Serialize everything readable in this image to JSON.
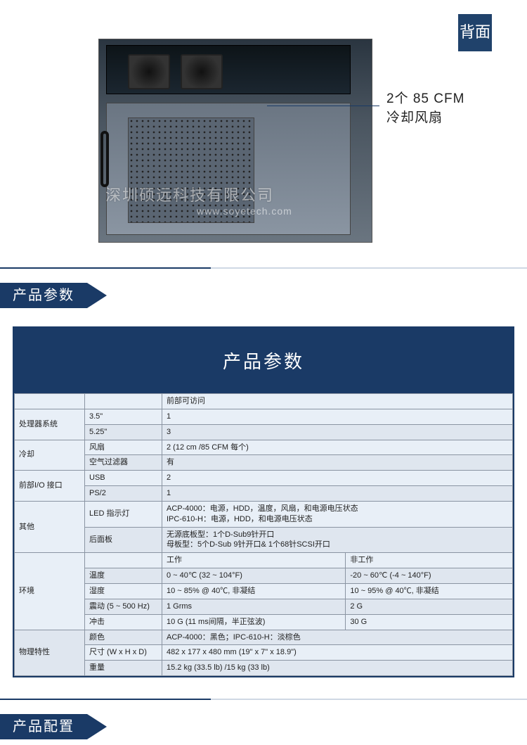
{
  "hero": {
    "side_tab": "背面",
    "callout_line1": "2个 85 CFM",
    "callout_line2": "冷却风扇",
    "watermark_main": "深圳硕远科技有限公司",
    "watermark_sub": "www.soyetech.com"
  },
  "section1_title": "产品参数",
  "section2_title": "产品配置",
  "params_card_title": "产品参数",
  "colors": {
    "accent": "#1a3a66",
    "card_bg": "#e8eff7",
    "border": "#8a94a2",
    "shade": "#dfe6ef"
  },
  "spec": {
    "top_header_col3": "前部可访问",
    "rows": [
      {
        "cat": "处理器系统",
        "catrows": 2,
        "sub": "3.5\"",
        "val": "1"
      },
      {
        "sub": "5.25\"",
        "val": "3",
        "shade": true
      },
      {
        "cat": "冷却",
        "catrows": 2,
        "sub": "风扇",
        "val": "2 (12 cm /85 CFM 每个)"
      },
      {
        "sub": "空气过滤器",
        "val": "有",
        "shade": true
      },
      {
        "cat": "前部I/O 接口",
        "catrows": 2,
        "sub": "USB",
        "val": "2"
      },
      {
        "sub": "PS/2",
        "val": "1",
        "shade": true
      },
      {
        "cat": "其他",
        "catrows": 2,
        "sub": "LED 指示灯",
        "val": "ACP-4000：电源，HDD，温度，风扇，和电源电压状态<br>IPC-610-H：电源，HDD，和电源电压状态"
      },
      {
        "sub": "后面板",
        "val": "无源底板型：1个D-Sub9针开口<br>母板型：5个D-Sub 9针开口& 1个68针SCSI开口",
        "shade": true
      }
    ],
    "env_header_work": "工作",
    "env_header_nonwork": "非工作",
    "env": [
      {
        "sub": "温度",
        "work": "0 ~ 40℃ (32 ~ 104°F)",
        "nonwork": "-20 ~ 60℃ (-4 ~ 140°F)",
        "shade": true
      },
      {
        "sub": "湿度",
        "work": "10 ~ 85% @ 40℃, 非凝结",
        "nonwork": "10 ~ 95% @ 40℃, 非凝结"
      },
      {
        "sub": "震动 (5 ~ 500 Hz)",
        "work": "1 Grms",
        "nonwork": "2 G",
        "shade": true
      },
      {
        "sub": "冲击",
        "work": "10 G (11 ms间隔，半正弦波)",
        "nonwork": "30 G"
      }
    ],
    "env_cat": "环境",
    "phys_cat": "物理特性",
    "phys": [
      {
        "sub": "颜色",
        "val": "ACP-4000：黑色；IPC-610-H：淡棕色",
        "shade": true
      },
      {
        "sub": "尺寸 (W x H x D)",
        "val": "482 x 177 x 480 mm  (19\" x 7\" x 18.9\")"
      },
      {
        "sub": "重量",
        "val": "15.2 kg (33.5 lb) /15 kg (33 lb)",
        "shade": true
      }
    ]
  }
}
